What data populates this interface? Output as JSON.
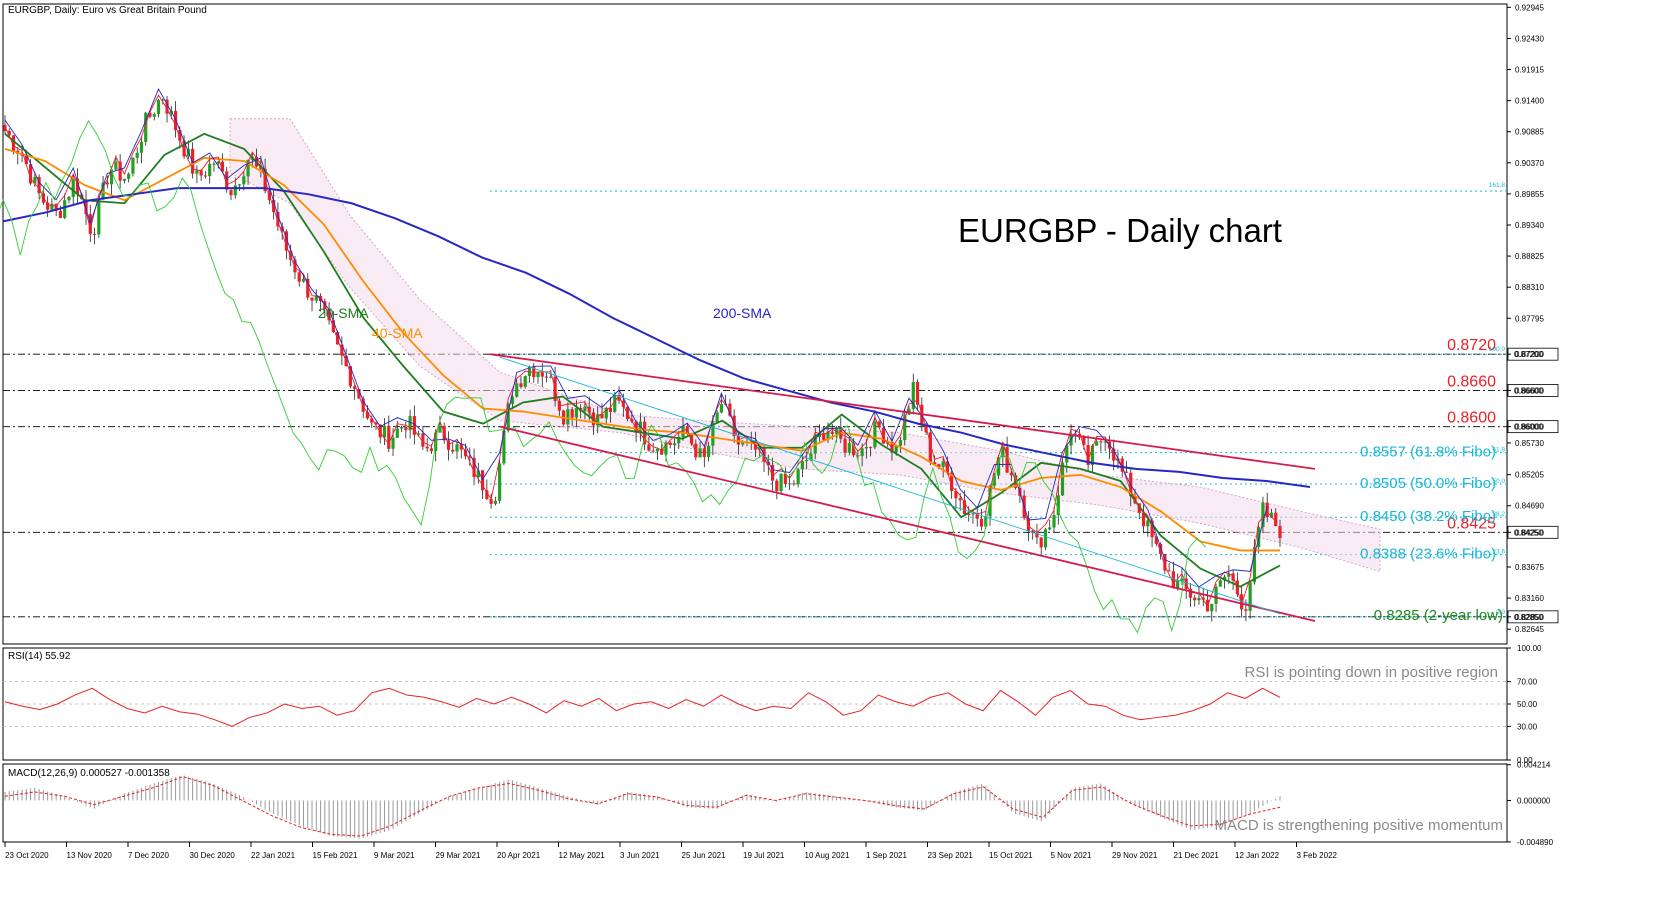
{
  "window": {
    "header": "EURGBP, Daily:  Euro vs Great Britain Pound",
    "title": "EURGBP - Daily chart"
  },
  "chart_data": [
    {
      "type": "line",
      "panel": "price",
      "title": "EURGBP - Daily chart",
      "y_axis": {
        "ticks": [
          "0.92945",
          "0.92430",
          "0.91915",
          "0.91400",
          "0.90885",
          "0.90370",
          "0.89855",
          "0.89340",
          "0.88825",
          "0.88310",
          "0.87795",
          "0.87200",
          "0.86600",
          "0.86000",
          "0.85730",
          "0.85205",
          "0.84690",
          "0.84250",
          "0.83675",
          "0.83160",
          "0.82850",
          "0.82645"
        ],
        "ylim": [
          0.824,
          0.93
        ]
      },
      "x_axis": {
        "ticks": [
          "23 Oct 2020",
          "13 Nov 2020",
          "7 Dec 2020",
          "30 Dec 2020",
          "22 Jan 2021",
          "15 Feb 2021",
          "9 Mar 2021",
          "29 Mar 2021",
          "20 Apr 2021",
          "12 May 2021",
          "3 Jun 2021",
          "25 Jun 2021",
          "19 Jul 2021",
          "10 Aug 2021",
          "1 Sep 2021",
          "23 Sep 2021",
          "15 Oct 2021",
          "5 Nov 2021",
          "29 Nov 2021",
          "21 Dec 2021",
          "12 Jan 2022",
          "3 Feb 2022"
        ]
      },
      "series": [
        {
          "name": "20-SMA",
          "color": "#1e7d1e",
          "values": [
            0.9085,
            0.903,
            0.8975,
            0.897,
            0.905,
            0.9085,
            0.906,
            0.899,
            0.889,
            0.878,
            0.87,
            0.8625,
            0.8605,
            0.864,
            0.865,
            0.86,
            0.859,
            0.858,
            0.861,
            0.8565,
            0.8565,
            0.862,
            0.857,
            0.853,
            0.845,
            0.849,
            0.854,
            0.853,
            0.851,
            0.842,
            0.8365,
            0.8335,
            0.837
          ]
        },
        {
          "name": "40-SMA",
          "color": "#ff8c00",
          "values": [
            0.906,
            0.904,
            0.9,
            0.8975,
            0.901,
            0.9045,
            0.904,
            0.9,
            0.8935,
            0.884,
            0.8755,
            0.8685,
            0.863,
            0.8625,
            0.8615,
            0.8605,
            0.8595,
            0.859,
            0.858,
            0.857,
            0.856,
            0.859,
            0.858,
            0.855,
            0.851,
            0.8495,
            0.8515,
            0.852,
            0.85,
            0.846,
            0.841,
            0.8395,
            0.8395
          ]
        },
        {
          "name": "200-SMA",
          "color": "#2727c4",
          "values": [
            0.894,
            0.8955,
            0.8975,
            0.8985,
            0.8995,
            0.8995,
            0.8995,
            0.8985,
            0.897,
            0.8945,
            0.8915,
            0.888,
            0.8855,
            0.882,
            0.878,
            0.8745,
            0.871,
            0.868,
            0.866,
            0.864,
            0.8625,
            0.8605,
            0.859,
            0.857,
            0.8555,
            0.854,
            0.853,
            0.8525,
            0.8515,
            0.851,
            0.85
          ]
        }
      ],
      "price_path": [
        0.909,
        0.905,
        0.898,
        0.895,
        0.901,
        0.892,
        0.903,
        0.901,
        0.91,
        0.915,
        0.908,
        0.901,
        0.904,
        0.899,
        0.905,
        0.899,
        0.89,
        0.884,
        0.88,
        0.873,
        0.867,
        0.86,
        0.858,
        0.861,
        0.856,
        0.859,
        0.856,
        0.852,
        0.848,
        0.866,
        0.87,
        0.869,
        0.862,
        0.864,
        0.861,
        0.864,
        0.861,
        0.857,
        0.857,
        0.859,
        0.854,
        0.864,
        0.857,
        0.856,
        0.851,
        0.85,
        0.855,
        0.86,
        0.857,
        0.856,
        0.86,
        0.856,
        0.866,
        0.855,
        0.852,
        0.846,
        0.845,
        0.856,
        0.85,
        0.84,
        0.845,
        0.86,
        0.854,
        0.859,
        0.852,
        0.846,
        0.839,
        0.834,
        0.832,
        0.8305,
        0.836,
        0.83,
        0.846,
        0.843
      ],
      "levels": [
        {
          "label": "0.8720",
          "color": "#e8212a"
        },
        {
          "label": "0.8660",
          "color": "#e8212a"
        },
        {
          "label": "0.8600",
          "color": "#e8212a"
        },
        {
          "label": "0.8425",
          "color": "#e8212a"
        }
      ],
      "fibo": [
        {
          "label": "0.8557 (61.8% Fibo)",
          "tag": "61.8"
        },
        {
          "label": "0.8505 (50.0% Fibo)",
          "tag": "50.0"
        },
        {
          "label": "0.8450 (38.2% Fibo)",
          "tag": "38.2"
        },
        {
          "label": "0.8388 (23.6% Fibo)",
          "tag": "23.6"
        }
      ],
      "fibo_tags": {
        "top": "161.8",
        "high": "100.0",
        "low": "0.0"
      },
      "low_label": "0.8285 (2-year low)",
      "price_tags": [
        "0.87200",
        "0.86600",
        "0.86000",
        "0.84250",
        "0.82850"
      ],
      "annotations": [
        "20-SMA",
        "40-SMA",
        "200-SMA"
      ],
      "colors": {
        "bull": "#22a022",
        "bear": "#e8212a",
        "channel": "#d81b4e",
        "fibo": "#19b7d7",
        "cloud": "#d9a6c8"
      }
    },
    {
      "type": "line",
      "panel": "rsi",
      "header": "RSI(14) 55.92",
      "note": "RSI is pointing down in positive region",
      "y_axis": {
        "ticks": [
          "100.00",
          "70.00",
          "50.00",
          "30.00",
          "0.00"
        ],
        "ylim": [
          0,
          100
        ]
      },
      "values": [
        52,
        48,
        45,
        50,
        58,
        64,
        54,
        46,
        42,
        48,
        43,
        41,
        36,
        30,
        38,
        42,
        50,
        46,
        48,
        40,
        44,
        60,
        64,
        58,
        56,
        52,
        47,
        55,
        50,
        56,
        50,
        42,
        53,
        48,
        55,
        44,
        50,
        52,
        46,
        54,
        48,
        58,
        50,
        44,
        48,
        46,
        60,
        52,
        40,
        44,
        58,
        52,
        48,
        56,
        60,
        50,
        44,
        62,
        52,
        40,
        56,
        62,
        50,
        48,
        40,
        36,
        38,
        40,
        44,
        50,
        60,
        55,
        64,
        56
      ]
    },
    {
      "type": "bar",
      "panel": "macd",
      "header": "MACD(12,26,9) 0.000527 -0.001358",
      "note": "MACD is strengthening positive momentum",
      "y_axis": {
        "ticks": [
          "0.004214",
          "0.000000",
          "-0.004890"
        ],
        "ylim": [
          -0.0049,
          0.0043
        ]
      },
      "histogram": [
        0.001,
        0.0015,
        0.0005,
        -0.001,
        0.0008,
        0.002,
        0.003,
        0.002,
        0.0005,
        -0.0015,
        -0.003,
        -0.0042,
        -0.0045,
        -0.0035,
        -0.0015,
        0.0005,
        0.0015,
        0.0025,
        0.0015,
        0.0005,
        -0.0005,
        0.001,
        0.0005,
        -0.0008,
        -0.001,
        0.0008,
        -0.0002,
        0.001,
        0.0005,
        0.0,
        -0.0008,
        -0.0012,
        0.001,
        0.002,
        -0.0015,
        -0.0025,
        0.0015,
        0.002,
        -0.0005,
        -0.002,
        -0.0035,
        -0.003,
        -0.0015,
        0.0005
      ],
      "signal": [
        0.0005,
        0.001,
        0.0005,
        -0.0005,
        0.0005,
        0.0015,
        0.0028,
        0.0018,
        0.0,
        -0.0018,
        -0.0032,
        -0.004,
        -0.0042,
        -0.003,
        -0.0012,
        0.0005,
        0.0015,
        0.002,
        0.0012,
        0.0002,
        -0.0004,
        0.0008,
        0.0004,
        -0.0006,
        -0.0008,
        0.0006,
        0.0,
        0.0008,
        0.0004,
        0.0,
        -0.0006,
        -0.001,
        0.0008,
        0.0016,
        -0.001,
        -0.002,
        0.0012,
        0.0016,
        -0.0004,
        -0.0018,
        -0.003,
        -0.0028,
        -0.0016,
        -0.0008
      ]
    }
  ]
}
